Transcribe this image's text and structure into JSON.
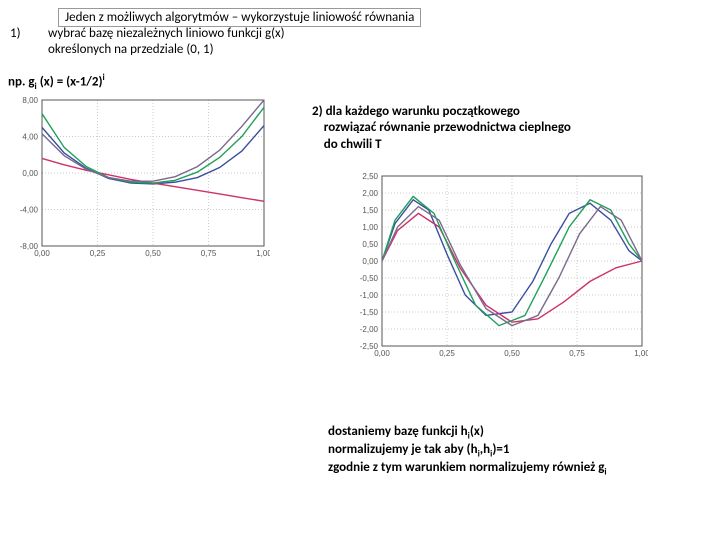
{
  "header_boxed": "Jeden z możliwych algorytmów – wykorzystuje liniowość równania",
  "item1_num": "1)",
  "item1_a": "wybrać bazę niezależnych liniowo funkcji g(x)",
  "item1_b": "określonych na przedziale (0, 1)",
  "np_prefix": "np. g",
  "np_sub": "i",
  "np_mid": " (x) = (x-1/2)",
  "np_sup": "i",
  "item2_a": "2) dla każdego warunku początkowego",
  "item2_b": "    rozwiązać równanie przewodnictwa cieplnego",
  "item2_c": "    do chwili T",
  "tail_a_1": "dostaniemy bazę funkcji h",
  "tail_a_2": "(x)",
  "tail_b_1": "normalizujemy je tak aby (h",
  "tail_b_2": ",h",
  "tail_b_3": ")=1",
  "tail_c": "zgodnie z tym warunkiem normalizujemy również g",
  "tail_sub": "i",
  "chart1": {
    "type": "line",
    "xlim": [
      0,
      1
    ],
    "ylim": [
      -8,
      8
    ],
    "xticks": [
      0.0,
      0.25,
      0.5,
      0.75,
      1.0
    ],
    "yticks": [
      -8,
      -4,
      0,
      4,
      8
    ],
    "ytick_labels": [
      "-8,00",
      "-4,00",
      "0,00",
      "4,00",
      "8,00"
    ],
    "xtick_labels": [
      "0,00",
      "0,25",
      "0,50",
      "0,75",
      "1,00"
    ],
    "series": [
      {
        "color": "#3b4fa0",
        "points": [
          [
            0,
            5.0
          ],
          [
            0.1,
            2.2
          ],
          [
            0.2,
            0.5
          ],
          [
            0.3,
            -0.6
          ],
          [
            0.4,
            -1.1
          ],
          [
            0.5,
            -1.2
          ],
          [
            0.6,
            -1.0
          ],
          [
            0.7,
            -0.5
          ],
          [
            0.8,
            0.6
          ],
          [
            0.9,
            2.4
          ],
          [
            1.0,
            5.2
          ]
        ]
      },
      {
        "color": "#cc3366",
        "points": [
          [
            0,
            1.6
          ],
          [
            0.1,
            0.9
          ],
          [
            0.2,
            0.3
          ],
          [
            0.3,
            -0.2
          ],
          [
            0.4,
            -0.7
          ],
          [
            0.5,
            -1.1
          ],
          [
            0.6,
            -1.5
          ],
          [
            0.7,
            -1.9
          ],
          [
            0.8,
            -2.3
          ],
          [
            0.9,
            -2.7
          ],
          [
            1.0,
            -3.1
          ]
        ]
      },
      {
        "color": "#1fa05a",
        "points": [
          [
            0,
            6.5
          ],
          [
            0.1,
            2.8
          ],
          [
            0.2,
            0.7
          ],
          [
            0.3,
            -0.5
          ],
          [
            0.4,
            -1.0
          ],
          [
            0.5,
            -1.1
          ],
          [
            0.6,
            -0.8
          ],
          [
            0.7,
            0.1
          ],
          [
            0.8,
            1.7
          ],
          [
            0.9,
            4.0
          ],
          [
            1.0,
            7.2
          ]
        ]
      },
      {
        "color": "#7a6a8f",
        "points": [
          [
            0,
            4.3
          ],
          [
            0.1,
            1.9
          ],
          [
            0.2,
            0.4
          ],
          [
            0.3,
            -0.5
          ],
          [
            0.4,
            -0.9
          ],
          [
            0.5,
            -0.9
          ],
          [
            0.6,
            -0.4
          ],
          [
            0.7,
            0.7
          ],
          [
            0.8,
            2.5
          ],
          [
            0.9,
            5.1
          ],
          [
            1.0,
            8.0
          ]
        ]
      }
    ]
  },
  "chart2": {
    "type": "line",
    "xlim": [
      0,
      1
    ],
    "ylim": [
      -2.5,
      2.5
    ],
    "xticks": [
      0.0,
      0.25,
      0.5,
      0.75,
      1.0
    ],
    "xtick_labels": [
      "0,00",
      "0,25",
      "0,50",
      "0,75",
      "1,00"
    ],
    "yticks": [
      -2.5,
      -2,
      -1.5,
      -1,
      -0.5,
      0,
      0.5,
      1,
      1.5,
      2,
      2.5
    ],
    "ytick_labels": [
      "-2,50",
      "-2,00",
      "-1,50",
      "-1,00",
      "-0,50",
      "0,00",
      "0,50",
      "1,00",
      "1,50",
      "2,00",
      "2,50"
    ],
    "series": [
      {
        "color": "#3b4fa0",
        "points": [
          [
            0,
            0
          ],
          [
            0.05,
            1.1
          ],
          [
            0.12,
            1.8
          ],
          [
            0.18,
            1.5
          ],
          [
            0.25,
            0.2
          ],
          [
            0.32,
            -1.0
          ],
          [
            0.4,
            -1.6
          ],
          [
            0.5,
            -1.5
          ],
          [
            0.58,
            -0.6
          ],
          [
            0.65,
            0.5
          ],
          [
            0.72,
            1.4
          ],
          [
            0.8,
            1.7
          ],
          [
            0.88,
            1.2
          ],
          [
            0.95,
            0.3
          ],
          [
            1.0,
            0
          ]
        ]
      },
      {
        "color": "#cc3366",
        "points": [
          [
            0,
            0
          ],
          [
            0.06,
            0.9
          ],
          [
            0.14,
            1.4
          ],
          [
            0.22,
            1.0
          ],
          [
            0.3,
            -0.2
          ],
          [
            0.4,
            -1.3
          ],
          [
            0.5,
            -1.8
          ],
          [
            0.6,
            -1.7
          ],
          [
            0.7,
            -1.2
          ],
          [
            0.8,
            -0.6
          ],
          [
            0.9,
            -0.2
          ],
          [
            1.0,
            0
          ]
        ]
      },
      {
        "color": "#1fa05a",
        "points": [
          [
            0,
            0
          ],
          [
            0.05,
            1.2
          ],
          [
            0.12,
            1.9
          ],
          [
            0.2,
            1.4
          ],
          [
            0.28,
            0.0
          ],
          [
            0.36,
            -1.3
          ],
          [
            0.45,
            -1.9
          ],
          [
            0.55,
            -1.6
          ],
          [
            0.63,
            -0.4
          ],
          [
            0.72,
            1.0
          ],
          [
            0.8,
            1.8
          ],
          [
            0.88,
            1.5
          ],
          [
            0.95,
            0.5
          ],
          [
            1.0,
            0
          ]
        ]
      },
      {
        "color": "#7a6a8f",
        "points": [
          [
            0,
            0
          ],
          [
            0.06,
            1.0
          ],
          [
            0.14,
            1.6
          ],
          [
            0.22,
            1.2
          ],
          [
            0.3,
            -0.1
          ],
          [
            0.4,
            -1.4
          ],
          [
            0.5,
            -1.9
          ],
          [
            0.6,
            -1.6
          ],
          [
            0.68,
            -0.5
          ],
          [
            0.76,
            0.8
          ],
          [
            0.84,
            1.6
          ],
          [
            0.92,
            1.2
          ],
          [
            1.0,
            0
          ]
        ]
      }
    ]
  }
}
